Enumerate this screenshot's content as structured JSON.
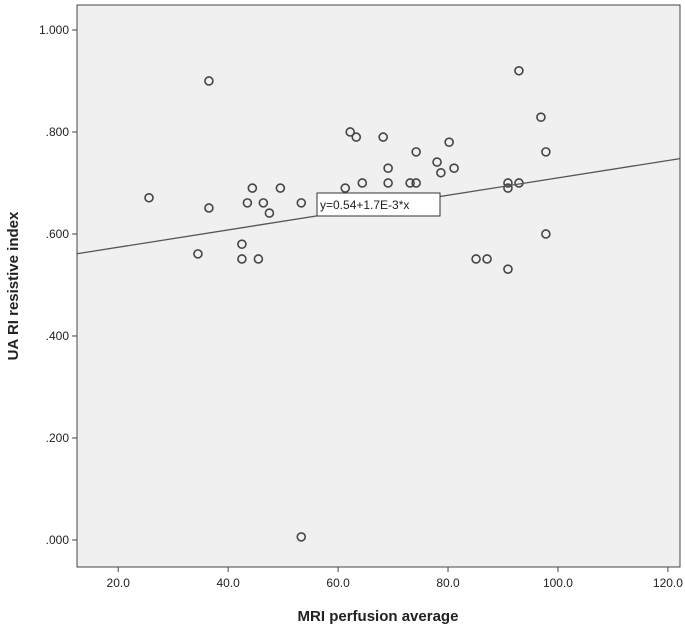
{
  "chart_data": {
    "type": "scatter",
    "title": "",
    "xlabel": "MRI perfusion average",
    "ylabel": "UA RI resistive index",
    "xlim": [
      12.5,
      122.2
    ],
    "ylim": [
      -0.053,
      1.049
    ],
    "x_ticks": [
      20,
      40,
      60,
      80,
      100,
      120
    ],
    "x_tick_labels": [
      "20.0",
      "40.0",
      "60.0",
      "80.0",
      "100.0",
      "120.0"
    ],
    "y_ticks": [
      0,
      0.2,
      0.4,
      0.6,
      0.8,
      1.0
    ],
    "y_tick_labels": [
      ".000",
      ".200",
      ".400",
      ".600",
      ".800",
      "1.000"
    ],
    "grid": false,
    "background": "#f0f0f0",
    "marker_color": "#444444",
    "fit_line": {
      "intercept": 0.54,
      "slope": 0.0017,
      "label": "y=0.54+1.7E-3*x"
    },
    "points": [
      [
        25.6,
        0.671
      ],
      [
        36.5,
        0.9
      ],
      [
        36.5,
        0.651
      ],
      [
        34.5,
        0.561
      ],
      [
        42.5,
        0.58
      ],
      [
        42.5,
        0.551
      ],
      [
        43.5,
        0.661
      ],
      [
        44.4,
        0.69
      ],
      [
        45.5,
        0.551
      ],
      [
        46.4,
        0.661
      ],
      [
        47.5,
        0.641
      ],
      [
        49.5,
        0.69
      ],
      [
        53.3,
        0.661
      ],
      [
        53.3,
        0.006
      ],
      [
        61.3,
        0.69
      ],
      [
        62.2,
        0.8
      ],
      [
        63.3,
        0.79
      ],
      [
        64.4,
        0.7
      ],
      [
        68.2,
        0.79
      ],
      [
        69.1,
        0.729
      ],
      [
        69.1,
        0.7
      ],
      [
        73.1,
        0.7
      ],
      [
        74.2,
        0.7
      ],
      [
        74.2,
        0.761
      ],
      [
        78.0,
        0.741
      ],
      [
        78.7,
        0.72
      ],
      [
        80.2,
        0.78
      ],
      [
        81.1,
        0.729
      ],
      [
        85.1,
        0.551
      ],
      [
        87.1,
        0.551
      ],
      [
        90.9,
        0.7
      ],
      [
        90.9,
        0.69
      ],
      [
        90.9,
        0.531
      ],
      [
        92.9,
        0.7
      ],
      [
        92.9,
        0.92
      ],
      [
        96.9,
        0.829
      ],
      [
        97.8,
        0.761
      ],
      [
        97.8,
        0.6
      ]
    ]
  }
}
